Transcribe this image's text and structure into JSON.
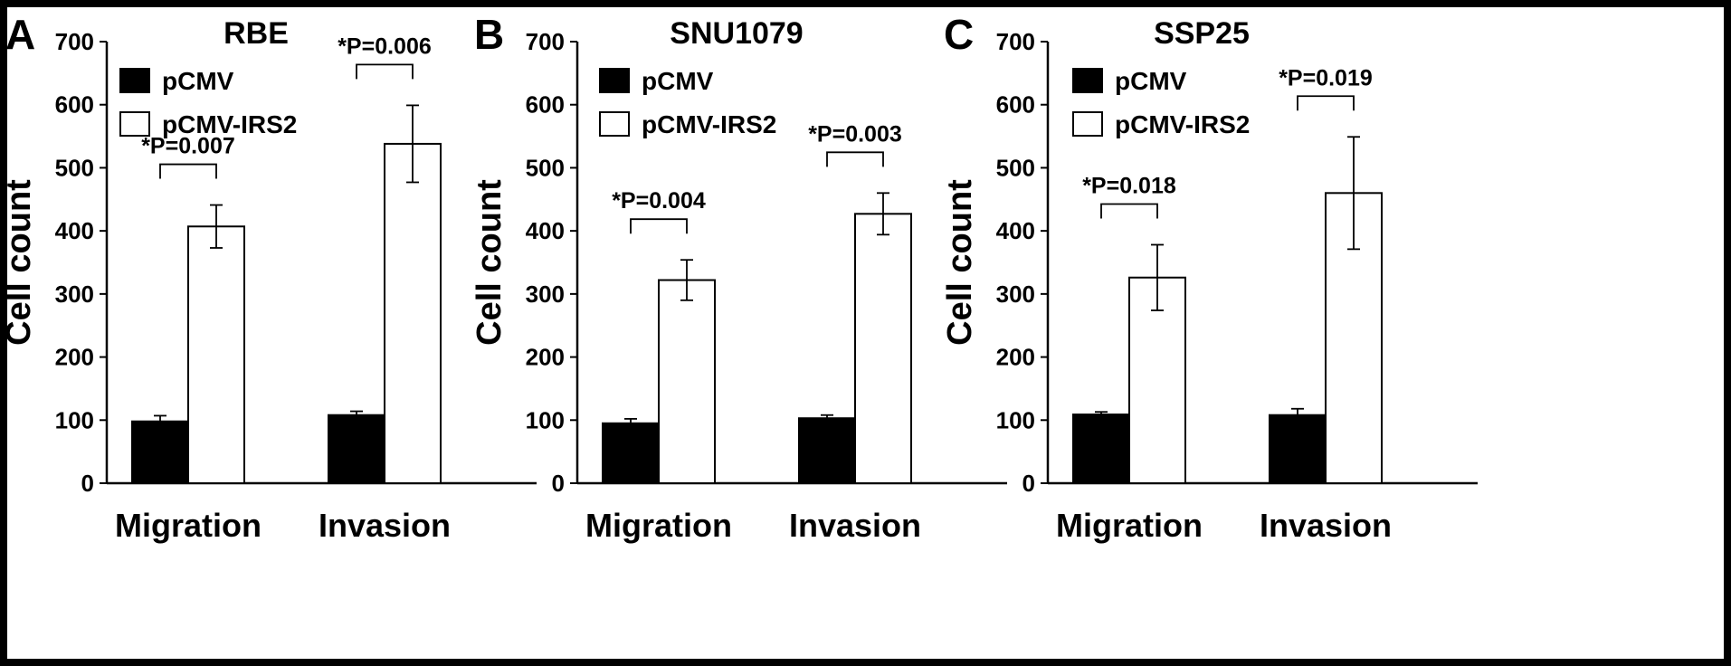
{
  "chart_data": [
    {
      "type": "bar",
      "panel_label": "A",
      "title": "RBE",
      "ylabel": "Cell count",
      "ylim": [
        0,
        700
      ],
      "yticks": [
        0,
        100,
        200,
        300,
        400,
        500,
        600,
        700
      ],
      "categories": [
        "Migration",
        "Invasion"
      ],
      "series": [
        {
          "name": "pCMV",
          "color": "#000000",
          "values": [
            98,
            108
          ],
          "errors": [
            9,
            6
          ]
        },
        {
          "name": "pCMV-IRS2",
          "color": "#ffffff",
          "values": [
            407,
            538
          ],
          "errors": [
            34,
            61
          ]
        }
      ],
      "annotations": [
        "*P=0.007",
        "*P=0.006"
      ],
      "legend_position": "top-left",
      "grid": false
    },
    {
      "type": "bar",
      "panel_label": "B",
      "title": "SNU1079",
      "ylabel": "Cell count",
      "ylim": [
        0,
        700
      ],
      "yticks": [
        0,
        100,
        200,
        300,
        400,
        500,
        600,
        700
      ],
      "categories": [
        "Migration",
        "Invasion"
      ],
      "series": [
        {
          "name": "pCMV",
          "color": "#000000",
          "values": [
            95,
            103
          ],
          "errors": [
            7,
            5
          ]
        },
        {
          "name": "pCMV-IRS2",
          "color": "#ffffff",
          "values": [
            322,
            427
          ],
          "errors": [
            32,
            33
          ]
        }
      ],
      "annotations": [
        "*P=0.004",
        "*P=0.003"
      ],
      "legend_position": "top-left",
      "grid": false
    },
    {
      "type": "bar",
      "panel_label": "C",
      "title": "SSP25",
      "ylabel": "Cell count",
      "ylim": [
        0,
        700
      ],
      "yticks": [
        0,
        100,
        200,
        300,
        400,
        500,
        600,
        700
      ],
      "categories": [
        "Migration",
        "Invasion"
      ],
      "series": [
        {
          "name": "pCMV",
          "color": "#000000",
          "values": [
            109,
            108
          ],
          "errors": [
            4,
            10
          ]
        },
        {
          "name": "pCMV-IRS2",
          "color": "#ffffff",
          "values": [
            326,
            460
          ],
          "errors": [
            52,
            89
          ]
        }
      ],
      "annotations": [
        "*P=0.018",
        "*P=0.019"
      ],
      "legend_position": "top-left",
      "grid": false
    }
  ]
}
